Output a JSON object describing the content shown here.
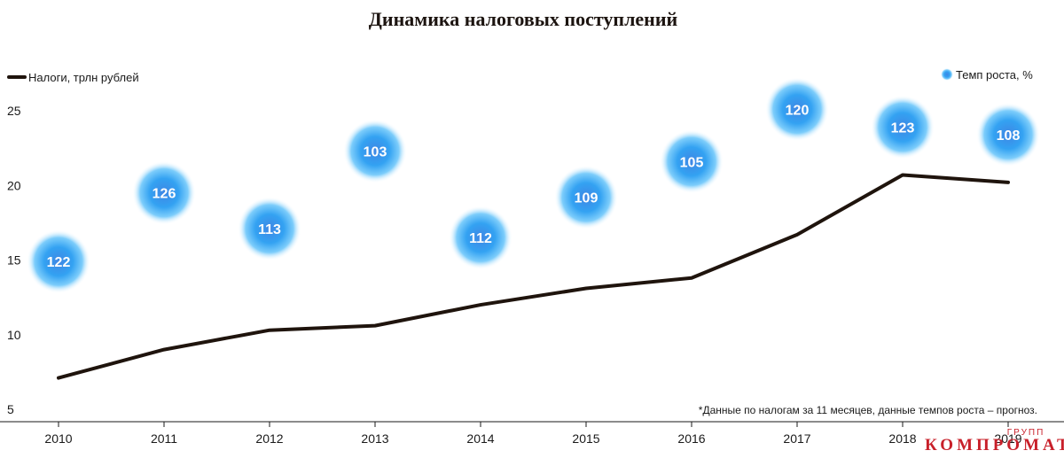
{
  "chart_data": {
    "type": "line",
    "title": "Динамика налоговых поступлений",
    "categories": [
      "2010",
      "2011",
      "2012",
      "2013",
      "2014",
      "2015",
      "2016",
      "2017",
      "2018",
      "2019"
    ],
    "series": [
      {
        "name": "Налоги, трлн рублей",
        "type": "line",
        "color": "#1f140d",
        "values": [
          7.1,
          9.0,
          10.3,
          10.6,
          12.0,
          13.1,
          13.8,
          16.7,
          20.7,
          20.2
        ]
      },
      {
        "name": "Темп роста, %",
        "type": "bubble",
        "color": "#2aa8f0",
        "labels": [
          122,
          126,
          113,
          103,
          112,
          109,
          105,
          120,
          123,
          108
        ],
        "bubble_y": [
          14.9,
          19.5,
          17.1,
          22.3,
          16.5,
          19.2,
          21.6,
          25.1,
          23.9,
          23.4
        ]
      }
    ],
    "yticks": [
      5,
      10,
      15,
      20,
      25
    ],
    "ylim": [
      5,
      27.5
    ],
    "footnote": "*Данные по налогам за 11 месяцев, данные темпов роста – прогноз."
  },
  "watermark": {
    "main": "КОМПРОМАТ",
    "sub": "ГРУПП"
  },
  "colors": {
    "line": "#1f140d",
    "bubble_core": "#3aa0ee",
    "bubble_glow": "#9fdcff",
    "watermark": "#c8202a"
  }
}
